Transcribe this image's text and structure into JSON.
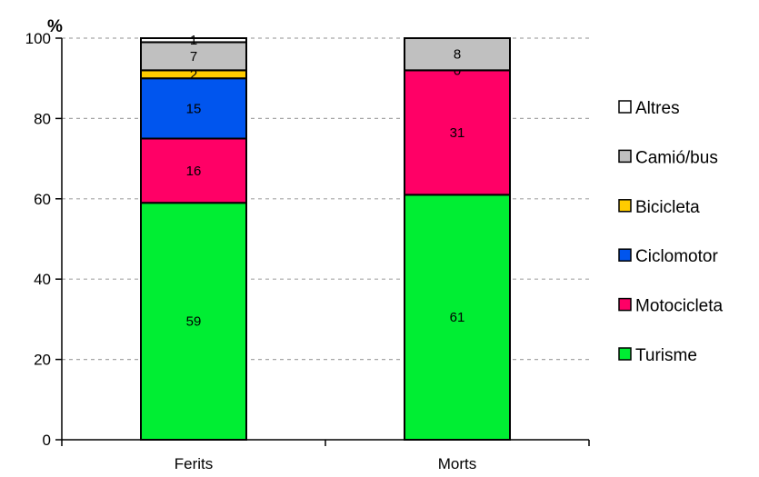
{
  "chart_data": {
    "type": "bar",
    "stacked": true,
    "unit_label": "%",
    "categories": [
      "Ferits",
      "Morts"
    ],
    "ylim": [
      0,
      100
    ],
    "yticks": [
      0,
      20,
      40,
      60,
      80,
      100
    ],
    "grid": true,
    "legend_position": "right",
    "series": [
      {
        "name": "Turisme",
        "color": "#00ee33",
        "values": [
          59,
          61
        ]
      },
      {
        "name": "Motocicleta",
        "color": "#ff0066",
        "values": [
          16,
          31
        ]
      },
      {
        "name": "Ciclomotor",
        "color": "#0055ee",
        "values": [
          15,
          0
        ]
      },
      {
        "name": "Bicicleta",
        "color": "#ffcc00",
        "values": [
          2,
          0
        ]
      },
      {
        "name": "Camió/bus",
        "color": "#c0c0c0",
        "values": [
          7,
          8
        ]
      },
      {
        "name": "Altres",
        "color": "#ffffff",
        "values": [
          1,
          0
        ]
      }
    ],
    "data_labels": [
      [
        "59",
        "61"
      ],
      [
        "16",
        "31"
      ],
      [
        "15",
        ""
      ],
      [
        "2",
        "0"
      ],
      [
        "7",
        "8"
      ],
      [
        "1",
        ""
      ]
    ]
  }
}
